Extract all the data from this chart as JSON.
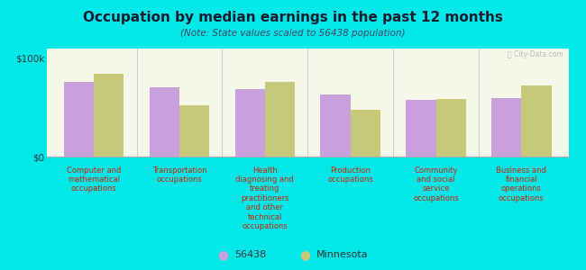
{
  "title": "Occupation by median earnings in the past 12 months",
  "subtitle": "(Note: State values scaled to 56438 population)",
  "background_color": "#00e8e8",
  "plot_bg_top": "#f5f7e8",
  "plot_bg_bottom": "#e8edd0",
  "categories": [
    "Computer and\nmathematical\noccupations",
    "Transportation\noccupations",
    "Health\ndiagnosing and\ntreating\npractitioners\nand other\ntechnical\noccupations",
    "Production\noccupations",
    "Community\nand social\nservice\noccupations",
    "Business and\nfinancial\noperations\noccupations"
  ],
  "values_56438": [
    76000,
    71000,
    69000,
    63000,
    58000,
    60000
  ],
  "values_minnesota": [
    84000,
    52000,
    76000,
    48000,
    59000,
    72000
  ],
  "color_56438": "#c9a0dc",
  "color_minnesota": "#c8c87a",
  "ylim": [
    0,
    110000
  ],
  "yticks": [
    0,
    100000
  ],
  "ytick_labels": [
    "$0",
    "$100k"
  ],
  "legend_labels": [
    "56438",
    "Minnesota"
  ],
  "bar_width": 0.35,
  "watermark": "Ⓚ City-Data.com",
  "title_color": "#1a1a2e",
  "subtitle_color": "#444466",
  "xlabel_color": "#cc2200",
  "ytick_color": "#333333"
}
